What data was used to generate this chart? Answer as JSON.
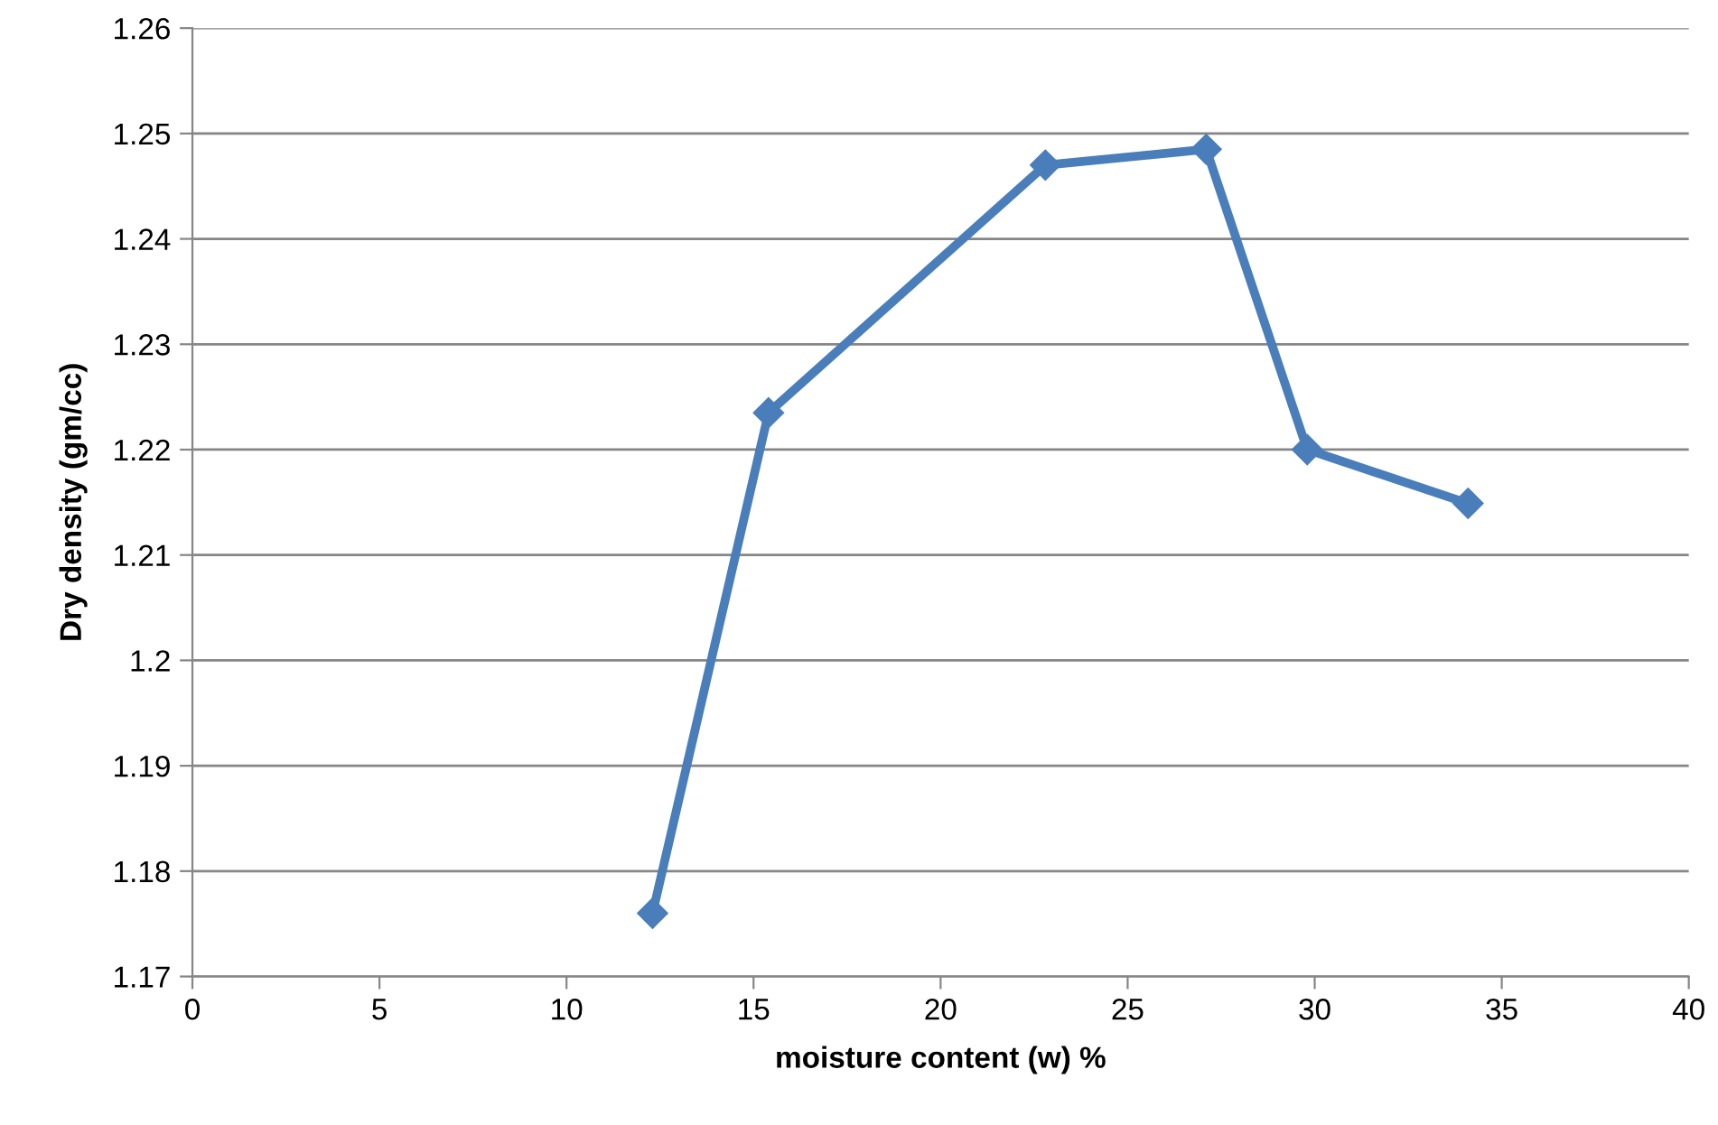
{
  "chart_data": {
    "type": "line",
    "xlabel": "moisture content (w) %",
    "ylabel": "Dry density (gm/cc)",
    "x": [
      12.3,
      15.4,
      22.8,
      27.1,
      29.8,
      34.1
    ],
    "series": [
      {
        "color": "#4a7ebb",
        "values": [
          1.176,
          1.2235,
          1.247,
          1.2485,
          1.22,
          1.2149
        ]
      }
    ],
    "xlim": [
      0,
      40
    ],
    "xticks": [
      0,
      5,
      10,
      15,
      20,
      25,
      30,
      35,
      40
    ],
    "ylim": [
      1.17,
      1.26
    ],
    "yticks": [
      1.17,
      1.18,
      1.19,
      {
        "value": 1.2,
        "label": "1.2"
      },
      1.21,
      1.22,
      1.23,
      1.24,
      1.25,
      1.26
    ],
    "grid": "y",
    "marker": "diamond",
    "line_style": "solid"
  }
}
